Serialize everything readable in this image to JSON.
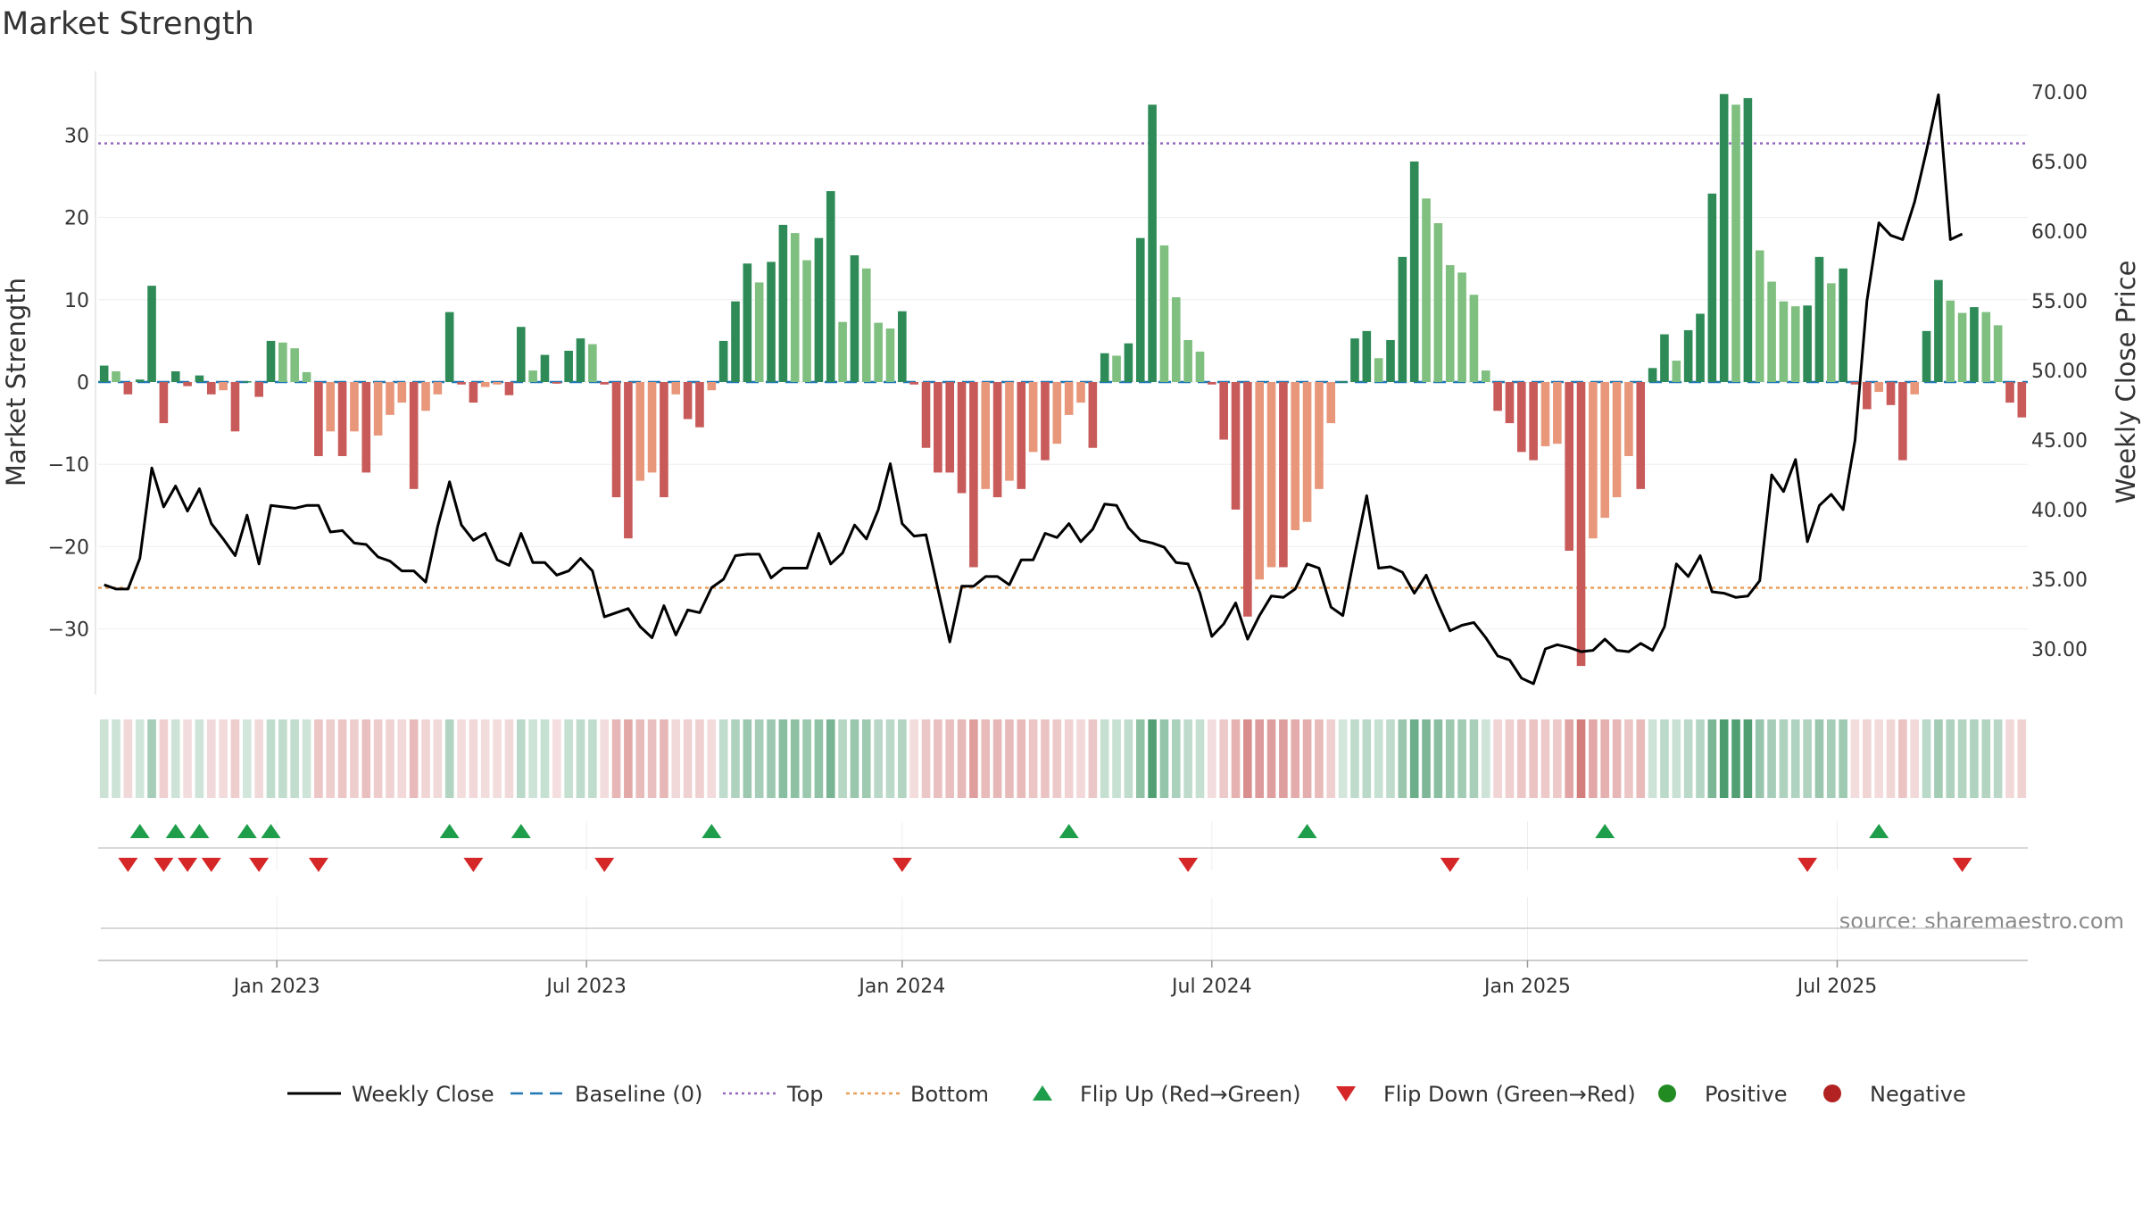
{
  "chart_data": {
    "type": "bar+line",
    "title": "Market Strength",
    "ylabel_left": "Market Strength",
    "ylabel_right": "Weekly Close Price",
    "ylim_left": [
      -38,
      38
    ],
    "ylim_right": [
      26,
      72
    ],
    "yticks_left": [
      "30",
      "20",
      "10",
      "0",
      "−10",
      "−20",
      "−30"
    ],
    "yticks_left_values": [
      30,
      20,
      10,
      0,
      -10,
      -20,
      -30
    ],
    "yticks_right": [
      "70.00",
      "65.00",
      "60.00",
      "55.00",
      "50.00",
      "45.00",
      "40.00",
      "35.00",
      "30.00"
    ],
    "yticks_right_values": [
      70,
      65,
      60,
      55,
      50,
      45,
      40,
      35,
      30
    ],
    "x_ticks": [
      "Jan 2023",
      "Jul 2023",
      "Jan 2024",
      "Jul 2024",
      "Jan 2025",
      "Jul 2025"
    ],
    "x_tick_weeks": [
      15,
      41,
      67.5,
      93.5,
      120,
      146
    ],
    "top_line": 29,
    "bottom_line": -25,
    "strength": [
      2,
      1.3,
      -1.5,
      0.3,
      11.7,
      -5,
      1.3,
      -0.5,
      0.8,
      -1.5,
      -1,
      -6,
      0.1,
      -1.8,
      5,
      4.8,
      4.1,
      1.2,
      -9,
      -6,
      -9,
      -6,
      -11,
      -6.5,
      -4,
      -2.5,
      -13,
      -3.5,
      -1.5,
      8.5,
      -0.3,
      -2.5,
      -0.6,
      -0.3,
      -1.6,
      6.7,
      1.4,
      3.3,
      -0.2,
      3.8,
      5.3,
      4.6,
      -0.3,
      -14,
      -19,
      -12,
      -11,
      -14,
      -1.5,
      -4.5,
      -5.5,
      -1,
      5,
      9.8,
      14.4,
      12.1,
      14.6,
      19.1,
      18.1,
      14.8,
      17.5,
      23.2,
      7.3,
      15.4,
      13.8,
      7.2,
      6.5,
      8.6,
      -0.3,
      -8,
      -11,
      -11,
      -13.5,
      -22.5,
      -13,
      -14,
      -12,
      -13,
      -8.5,
      -9.5,
      -7.5,
      -4,
      -2.5,
      -8,
      3.5,
      3.2,
      4.7,
      17.5,
      33.7,
      16.6,
      10.3,
      5.1,
      3.7,
      -0.3,
      -7,
      -15.5,
      -28.5,
      -24,
      -22.5,
      -22.5,
      -18,
      -17,
      -13,
      -5,
      0.1,
      5.3,
      6.2,
      2.9,
      5.1,
      15.2,
      26.8,
      22.3,
      19.3,
      14.2,
      13.3,
      10.6,
      1.4,
      -3.5,
      -5,
      -8.5,
      -9.5,
      -7.8,
      -7.5,
      -20.5,
      -34.5,
      -19,
      -16.5,
      -14,
      -9,
      -13,
      1.7,
      5.8,
      2.6,
      6.3,
      8.3,
      22.9,
      35,
      33.7,
      34.5,
      16,
      12.2,
      9.8,
      9.2,
      9.3,
      15.2,
      12,
      13.8,
      -0.3,
      -3.3,
      -1.2,
      -2.8,
      -9.5,
      -1.5,
      6.2,
      12.4,
      9.9,
      8.4,
      9.1,
      8.5,
      6.9,
      -2.5,
      -4.3
    ],
    "weekly_close": [
      34.6,
      34.3,
      34.3,
      36.5,
      43,
      40.2,
      41.7,
      39.9,
      41.5,
      39,
      37.9,
      36.7,
      39.6,
      36.1,
      40.3,
      40.2,
      40.1,
      40.3,
      40.3,
      38.4,
      38.5,
      37.6,
      37.5,
      36.6,
      36.3,
      35.6,
      35.6,
      34.8,
      38.8,
      42,
      38.9,
      37.8,
      38.3,
      36.4,
      36,
      38.3,
      36.2,
      36.2,
      35.3,
      35.6,
      36.5,
      35.6,
      32.3,
      32.6,
      32.9,
      31.6,
      30.8,
      33.1,
      31,
      32.8,
      32.6,
      34.4,
      35,
      36.7,
      36.8,
      36.8,
      35.1,
      35.8,
      35.8,
      35.8,
      38.3,
      36.1,
      36.9,
      38.9,
      37.9,
      40,
      43.3,
      39,
      38.1,
      38.2,
      34.3,
      30.5,
      34.5,
      34.5,
      35.2,
      35.2,
      34.6,
      36.4,
      36.4,
      38.3,
      38,
      39,
      37.7,
      38.6,
      40.4,
      40.3,
      38.7,
      37.8,
      37.6,
      37.3,
      36.2,
      36.1,
      34,
      30.9,
      31.8,
      33.3,
      30.7,
      32.4,
      33.8,
      33.7,
      34.3,
      36.1,
      35.8,
      33,
      32.4,
      36.8,
      41,
      35.8,
      35.9,
      35.5,
      34,
      35.3,
      33.2,
      31.3,
      31.7,
      31.9,
      30.8,
      29.5,
      29.2,
      27.9,
      27.5,
      30,
      30.3,
      30.1,
      29.8,
      29.9,
      30.7,
      29.9,
      29.8,
      30.4,
      29.9,
      31.6,
      36.1,
      35.2,
      36.7,
      34.1,
      34,
      33.7,
      33.8,
      34.9,
      42.5,
      41.3,
      43.6,
      37.7,
      40.3,
      41.1,
      40,
      45,
      55,
      60.6,
      59.7,
      59.4,
      62.1,
      65.8,
      69.8,
      59.4,
      59.8
    ],
    "flip_up_weeks": [
      3,
      6,
      8,
      12,
      14,
      29,
      35,
      51,
      81,
      101,
      126,
      149
    ],
    "flip_down_weeks": [
      2,
      5,
      7,
      9,
      13,
      18,
      31,
      42,
      67,
      91,
      113,
      143,
      156
    ],
    "legend": [
      {
        "label": "Weekly Close",
        "marker": "line"
      },
      {
        "label": "Baseline (0)",
        "marker": "dash"
      },
      {
        "label": "Top",
        "marker": "dot-purple"
      },
      {
        "label": "Bottom",
        "marker": "dot-orange"
      },
      {
        "label": "Flip Up (Red→Green)",
        "marker": "triangle-up"
      },
      {
        "label": "Flip Down (Green→Red)",
        "marker": "triangle-down"
      },
      {
        "label": "Positive",
        "marker": "circle-green"
      },
      {
        "label": "Negative",
        "marker": "circle-red"
      }
    ],
    "source": "source: sharemaestro.com",
    "colors": {
      "strong_green": "#2e8b57",
      "light_green": "#7fbf7f",
      "strong_red": "#c85a5a",
      "light_red": "#e8977a",
      "close_line": "#000000",
      "baseline": "#1f77b4",
      "top_line": "#9467bd",
      "bottom_line": "#e8a05a",
      "flip_up": "#1e9e4a",
      "flip_down": "#d62728",
      "positive_dot": "#228b22",
      "negative_dot": "#b22222"
    }
  }
}
